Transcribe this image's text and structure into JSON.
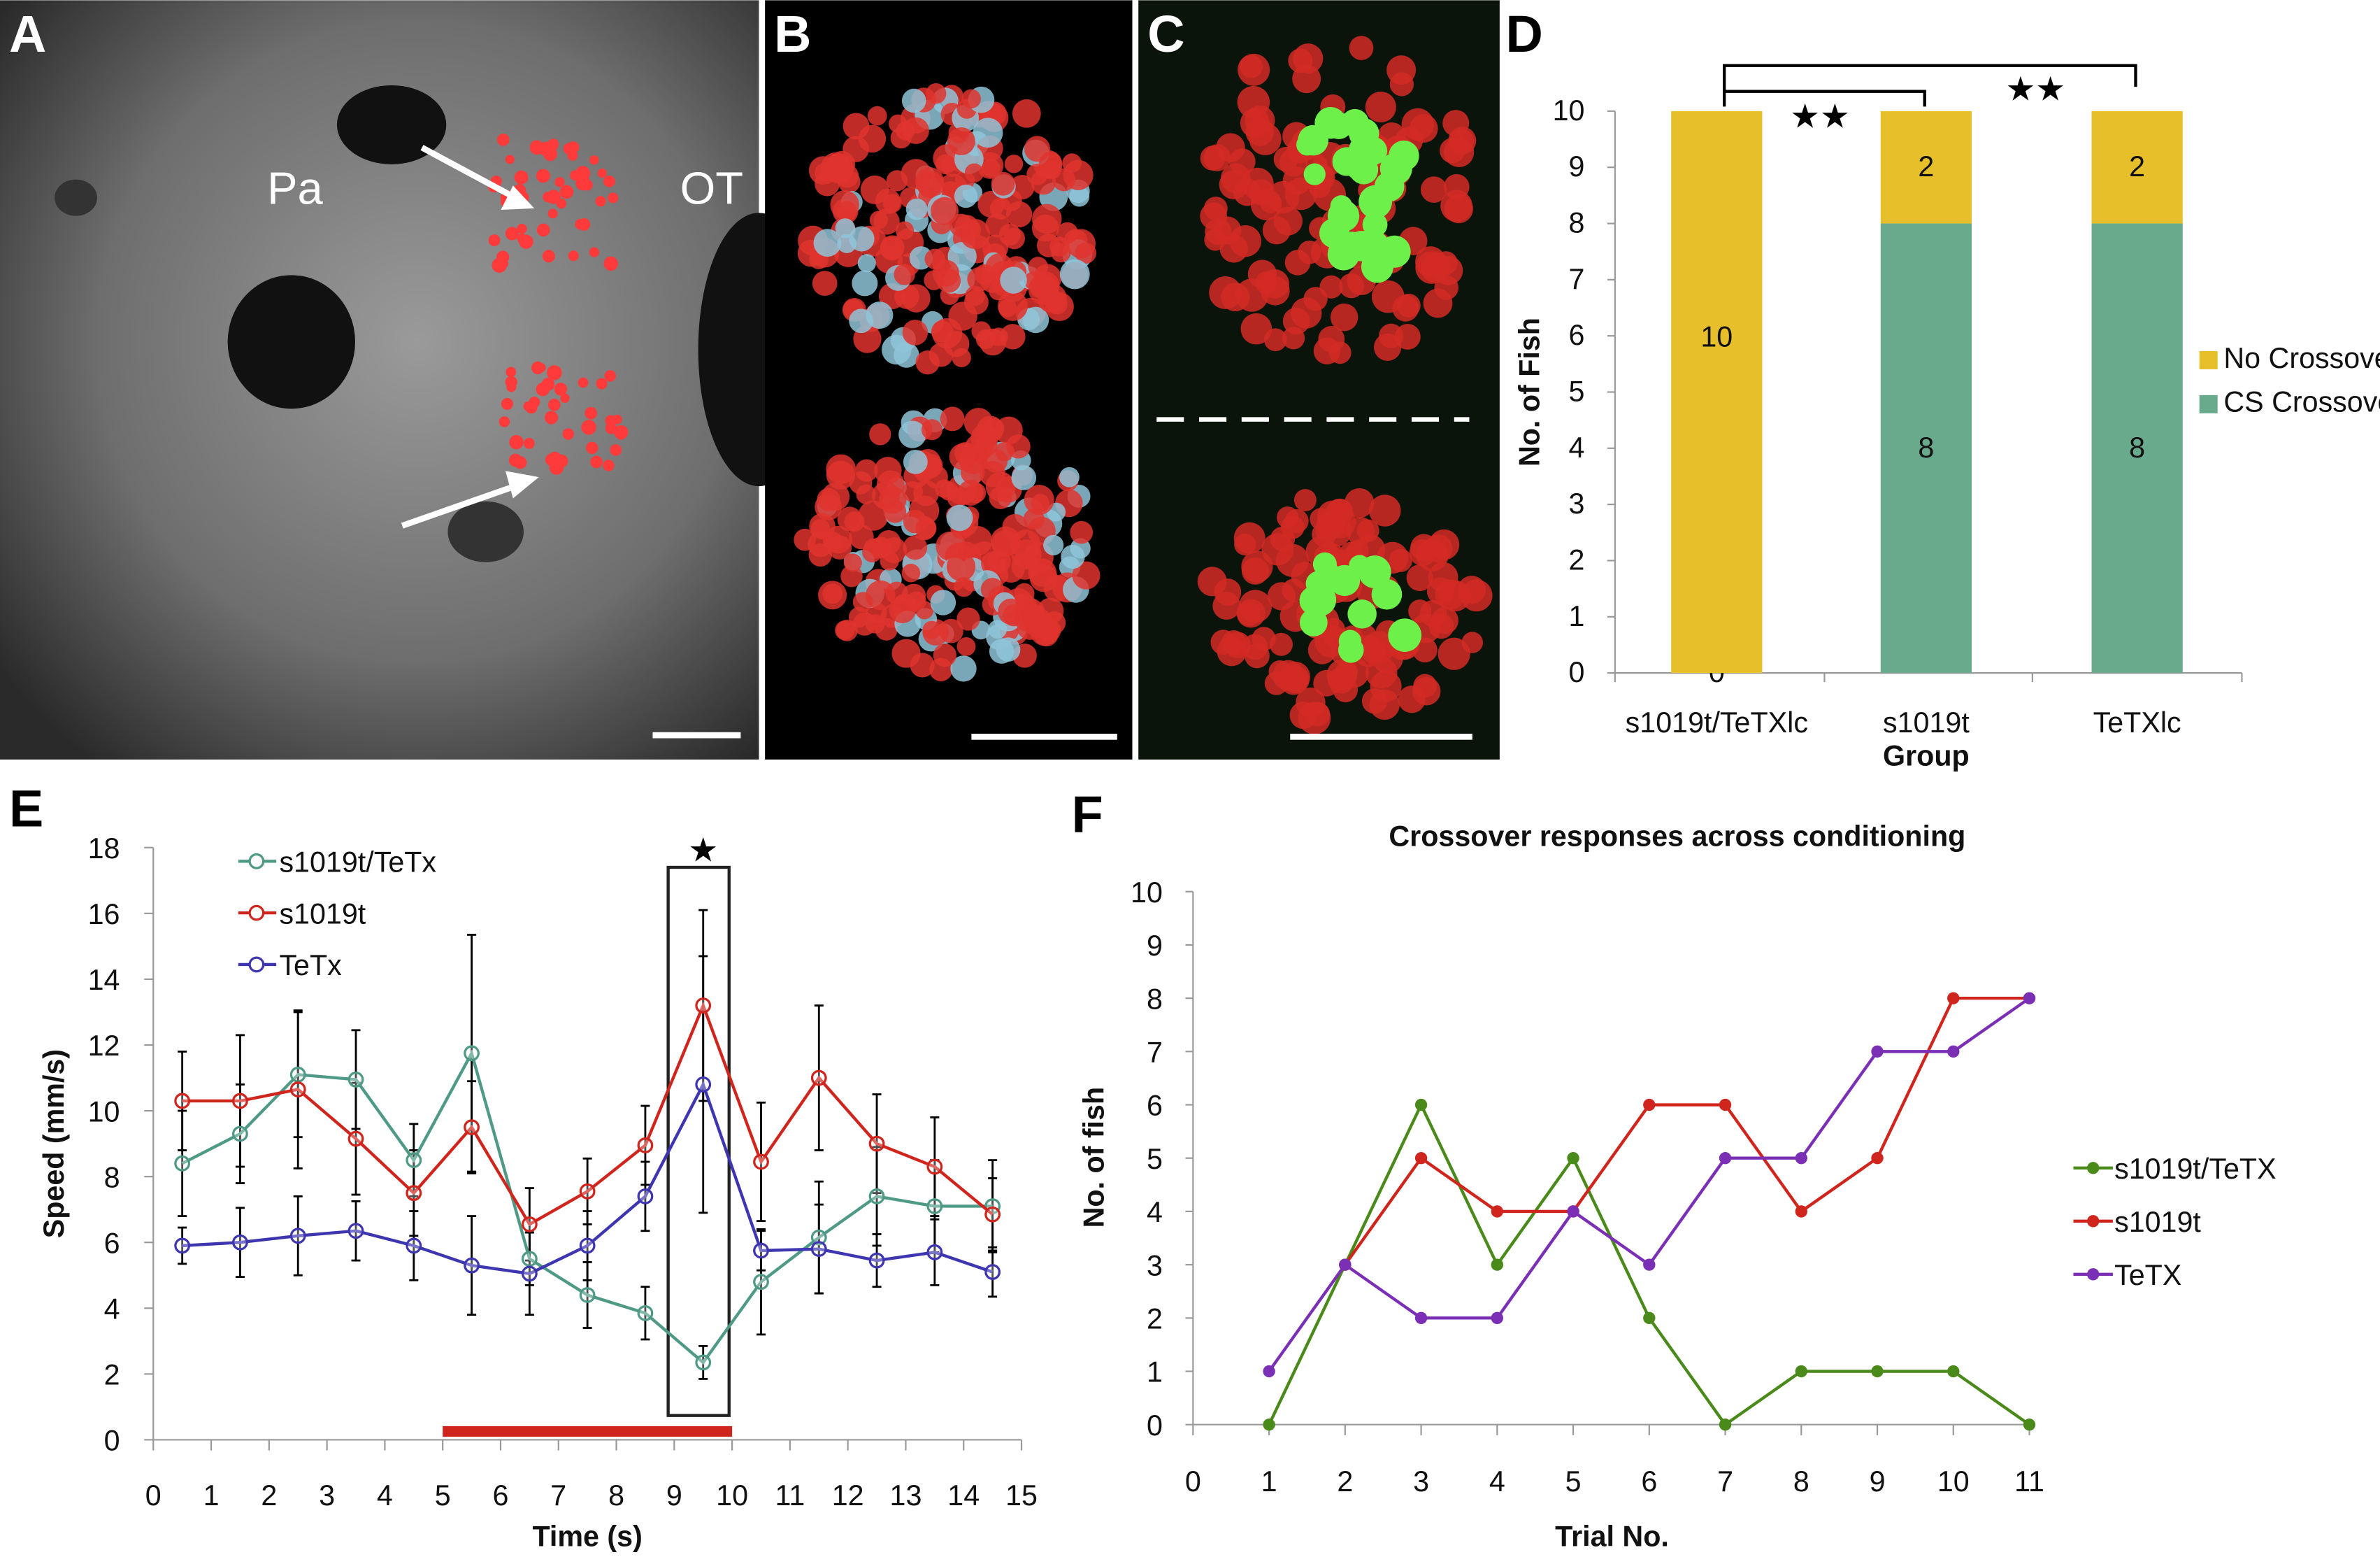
{
  "panels": {
    "A": "A",
    "B": "B",
    "C": "C",
    "D": "D",
    "E": "E",
    "F": "F"
  },
  "image_labels": {
    "pa": "Pa",
    "ot": "OT"
  },
  "colors": {
    "gold": "#e6bf2a",
    "teal_bar": "#69a98c",
    "teal": "#4f9a86",
    "red": "#d0251d",
    "blue": "#3e35b0",
    "green": "#4a8a1a",
    "purple": "#7a2fb5"
  },
  "chart_data": [
    {
      "id": "D",
      "type": "bar",
      "stacked": true,
      "xlabel": "Group",
      "ylabel": "No. of Fish",
      "ylim": [
        0,
        10
      ],
      "yticks": [
        0,
        1,
        2,
        3,
        4,
        5,
        6,
        7,
        8,
        9,
        10
      ],
      "categories": [
        "s1019t/TeTXlc",
        "s1019t",
        "TeTXlc"
      ],
      "series": [
        {
          "name": "CS Crossover",
          "color": "#69a98c",
          "values": [
            0,
            8,
            8
          ]
        },
        {
          "name": "No Crossover",
          "color": "#e6bf2a",
          "values": [
            10,
            2,
            2
          ]
        }
      ],
      "data_labels": {
        "CS Crossover": [
          "0",
          "8",
          "8"
        ],
        "No Crossover": [
          "10",
          "2",
          "2"
        ]
      },
      "legend": "right",
      "significance": [
        {
          "from": "s1019t/TeTXlc",
          "to": "s1019t",
          "mark": "★★"
        },
        {
          "from": "s1019t/TeTXlc",
          "to": "TeTXlc",
          "mark": "★★"
        }
      ]
    },
    {
      "id": "E",
      "type": "line",
      "xlabel": "Time (s)",
      "ylabel": "Speed (mm/s)",
      "xlim": [
        0,
        15
      ],
      "ylim": [
        0,
        18
      ],
      "xticks": [
        0,
        1,
        2,
        3,
        4,
        5,
        6,
        7,
        8,
        9,
        10,
        11,
        12,
        13,
        14,
        15
      ],
      "yticks": [
        0,
        2,
        4,
        6,
        8,
        10,
        12,
        14,
        16,
        18
      ],
      "x": [
        0.5,
        1.5,
        2.5,
        3.5,
        4.5,
        5.5,
        6.5,
        7.5,
        8.5,
        9.5,
        10.5,
        11.5,
        12.5,
        13.5,
        14.5
      ],
      "series": [
        {
          "name": "s1019t/TeTx",
          "color": "#4f9a86",
          "values": [
            8.4,
            9.3,
            11.1,
            10.95,
            8.5,
            11.75,
            5.5,
            4.4,
            3.85,
            2.35,
            4.8,
            6.15,
            7.4,
            7.1,
            7.1
          ],
          "error": [
            1.6,
            1.5,
            1.9,
            1.5,
            1.1,
            3.6,
            0.8,
            1.0,
            0.8,
            0.5,
            1.6,
            1.7,
            1.5,
            1.4,
            1.4
          ]
        },
        {
          "name": "s1019t",
          "color": "#d0251d",
          "values": [
            10.3,
            10.3,
            10.65,
            9.15,
            7.5,
            9.5,
            6.55,
            7.55,
            8.95,
            13.2,
            8.45,
            11.0,
            9.0,
            8.3,
            6.85
          ],
          "error": [
            1.5,
            2.0,
            2.4,
            1.7,
            1.3,
            1.4,
            1.1,
            1.0,
            1.2,
            2.9,
            1.8,
            2.2,
            1.5,
            1.5,
            1.1
          ]
        },
        {
          "name": "TeTx",
          "color": "#3e35b0",
          "values": [
            5.9,
            6.0,
            6.2,
            6.35,
            5.9,
            5.3,
            5.05,
            5.9,
            7.4,
            10.8,
            5.75,
            5.8,
            5.45,
            5.7,
            5.1
          ],
          "error": [
            0.55,
            1.05,
            1.2,
            0.9,
            1.05,
            1.5,
            1.25,
            1.05,
            1.05,
            3.9,
            0.6,
            1.35,
            0.8,
            1.0,
            0.75
          ]
        }
      ],
      "stimulus_bar": {
        "from": 5,
        "to": 10,
        "color": "#d0251d"
      },
      "highlight_box": {
        "from": 9,
        "to": 10
      },
      "annotation": "★",
      "legend": "top-left"
    },
    {
      "id": "F",
      "type": "line",
      "title": "Crossover responses across conditioning",
      "xlabel": "Trial No.",
      "ylabel": "No. of fish",
      "xlim": [
        0,
        11
      ],
      "ylim": [
        0,
        10
      ],
      "xticks": [
        0,
        1,
        2,
        3,
        4,
        5,
        6,
        7,
        8,
        9,
        10,
        11
      ],
      "yticks": [
        0,
        1,
        2,
        3,
        4,
        5,
        6,
        7,
        8,
        9,
        10
      ],
      "x": [
        1,
        2,
        3,
        4,
        5,
        6,
        7,
        8,
        9,
        10,
        11
      ],
      "series": [
        {
          "name": "s1019t/TeTX",
          "color": "#4a8a1a",
          "values": [
            0,
            3,
            6,
            3,
            5,
            2,
            0,
            1,
            1,
            1,
            0
          ]
        },
        {
          "name": "s1019t",
          "color": "#d0251d",
          "values": [
            null,
            3,
            5,
            4,
            4,
            6,
            6,
            4,
            5,
            8,
            8
          ]
        },
        {
          "name": "TeTX",
          "color": "#7a2fb5",
          "values": [
            1,
            3,
            2,
            2,
            4,
            3,
            5,
            5,
            7,
            7,
            8
          ]
        }
      ],
      "legend": "right"
    }
  ]
}
